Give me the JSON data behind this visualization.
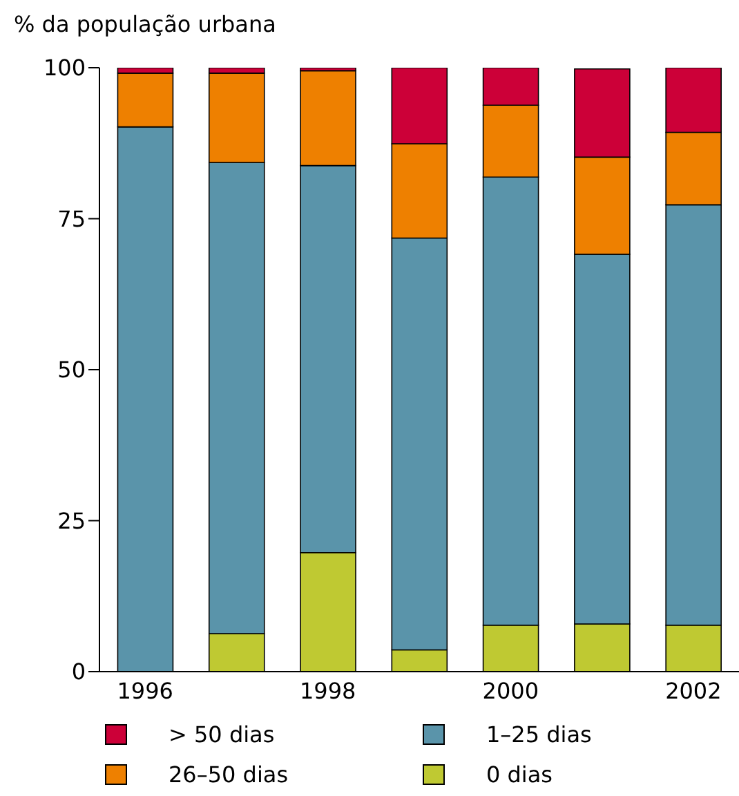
{
  "chart_data": {
    "type": "bar",
    "stacked": true,
    "ylabel": "% da população urbana",
    "categories": [
      "1996",
      null,
      "1998",
      null,
      "2000",
      null,
      "2002"
    ],
    "series": [
      {
        "name": "0 dias",
        "color": "#bfc932",
        "values": [
          0,
          6.3,
          19.7,
          3.6,
          7.7,
          7.9,
          7.7
        ]
      },
      {
        "name": "1–25 dias",
        "color": "#5a94aa",
        "values": [
          90.2,
          78.0,
          64.1,
          68.2,
          74.2,
          61.2,
          69.6
        ]
      },
      {
        "name": "26–50 dias",
        "color": "#ee8000",
        "values": [
          8.9,
          14.8,
          15.7,
          15.6,
          11.9,
          16.1,
          12.0
        ]
      },
      {
        "name": "> 50 dias",
        "color": "#cc0038",
        "values": [
          0.9,
          0.9,
          0.5,
          12.6,
          6.2,
          14.6,
          10.7
        ]
      }
    ],
    "ylim": [
      0,
      100
    ],
    "yticks": [
      0,
      25,
      50,
      75,
      100
    ],
    "grid": false,
    "legend": "bottom"
  }
}
